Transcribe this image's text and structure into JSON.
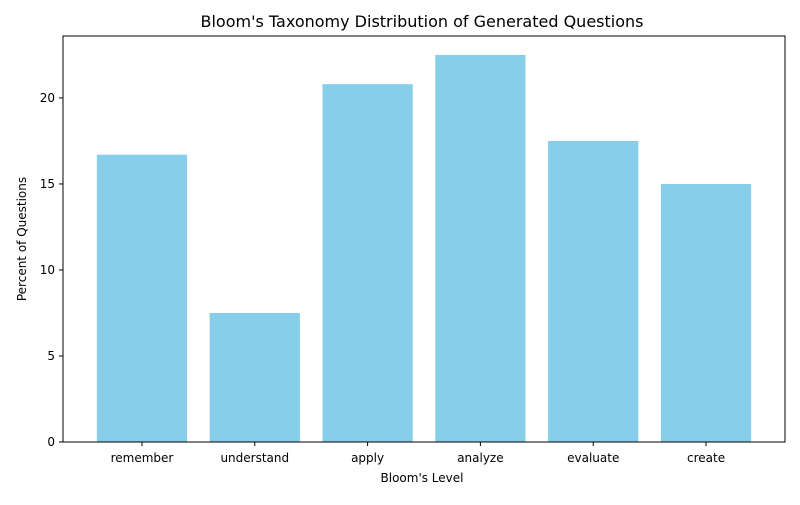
{
  "chart_data": {
    "type": "bar",
    "title": "Bloom's Taxonomy Distribution of Generated Questions",
    "xlabel": "Bloom's Level",
    "ylabel": "Percent of Questions",
    "categories": [
      "remember",
      "understand",
      "apply",
      "analyze",
      "evaluate",
      "create"
    ],
    "values": [
      16.7,
      7.5,
      20.8,
      22.5,
      17.5,
      15.0
    ],
    "ylim": [
      0,
      23.6
    ],
    "yticks": [
      0,
      5,
      10,
      15,
      20
    ],
    "bar_color": "#87ceeb",
    "grid": false,
    "legend": "none"
  }
}
